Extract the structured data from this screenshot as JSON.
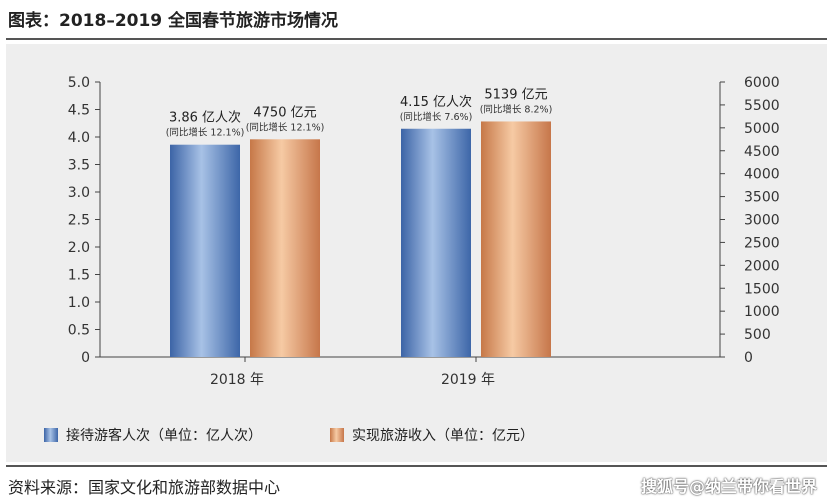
{
  "title": "图表：2018–2019 全国春节旅游市场情况",
  "source": "资料来源：国家文化和旅游部数据中心",
  "watermark": "搜狐号@纳兰带你看世界",
  "chart_data": {
    "type": "bar",
    "categories": [
      "2018 年",
      "2019 年"
    ],
    "series": [
      {
        "name": "接待游客人次（单位：亿人次）",
        "axis": "left",
        "values": [
          3.86,
          4.15
        ],
        "labels": [
          "3.86 亿人次",
          "4.15 亿人次"
        ],
        "sublabels": [
          "(同比增长 12.1%)",
          "(同比增长 7.6%)"
        ],
        "color": "#6f93c6"
      },
      {
        "name": "实现旅游收入（单位：亿元）",
        "axis": "right",
        "values": [
          4750,
          5139
        ],
        "labels": [
          "4750 亿元",
          "5139 亿元"
        ],
        "sublabels": [
          "(同比增长 12.1%)",
          "(同比增长 8.2%)"
        ],
        "color": "#e0a278"
      }
    ],
    "left_axis": {
      "ylim": [
        0,
        5.0
      ],
      "ticks": [
        "0",
        "0.5",
        "1.0",
        "1.5",
        "2.0",
        "2.5",
        "3.0",
        "3.5",
        "4.0",
        "4.5",
        "5.0"
      ]
    },
    "right_axis": {
      "ylim": [
        0,
        6000
      ],
      "ticks": [
        "0",
        "500",
        "1000",
        "1500",
        "2000",
        "2500",
        "3000",
        "3500",
        "4000",
        "4500",
        "5000",
        "5500",
        "6000"
      ]
    },
    "grid": false,
    "legend": "bottom"
  }
}
